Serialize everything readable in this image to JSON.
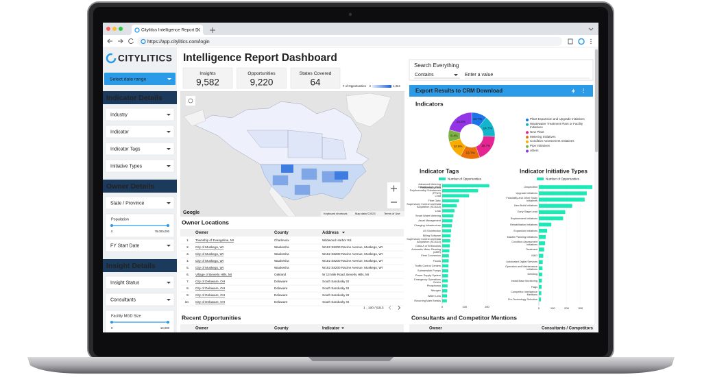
{
  "browser": {
    "tab_title": "Citylitics Intelligence Report D",
    "url": "https://app.citylitics.com/login"
  },
  "sidebar": {
    "logo": "CITYLITICS",
    "date_range": "Select date range",
    "sections": [
      {
        "title": "Indicator Details",
        "items": [
          {
            "label": "Industry"
          },
          {
            "label": "Indicator"
          },
          {
            "label": "Indicator Tags"
          },
          {
            "label": "Initiative Types"
          }
        ]
      },
      {
        "title": "Owner Details",
        "items": [
          {
            "label": "State / Province"
          },
          {
            "label": "Population",
            "min": "0",
            "max": "79,000,000"
          },
          {
            "label": "FY Start Date"
          }
        ]
      },
      {
        "title": "Insight Details",
        "items": [
          {
            "label": "Insight Status"
          },
          {
            "label": "Consultants"
          },
          {
            "label": "Facility MGD Size",
            "min": "0",
            "max": "13,000"
          }
        ]
      }
    ]
  },
  "header": {
    "title": "Intelligence Report Dashboard"
  },
  "stats": [
    {
      "label": "Insights",
      "value": "9,582"
    },
    {
      "label": "Opportunities",
      "value": "9,220"
    },
    {
      "label": "States Covered",
      "value": "64"
    }
  ],
  "map": {
    "legend_title": "# of Opportunities",
    "legend_min": "2",
    "legend_max": "1,324",
    "brand": "Google",
    "shortcuts": "Keyboard shortcuts",
    "map_data": "Map data ©2023",
    "terms": "Terms of Use"
  },
  "owner_locations": {
    "title": "Owner Locations",
    "columns": [
      "Owner",
      "County",
      "Address"
    ],
    "rows": [
      [
        "1.",
        "Township of Evangeline, MI",
        "Charlevoix",
        "Wildwood Harbor Rd"
      ],
      [
        "2.",
        "City of Muskego, WI",
        "Waukesha",
        "W182 S8200 Racine Avenue, Muskego, WI"
      ],
      [
        "3.",
        "City of Muskego, WI",
        "Waukesha",
        "W182 S8200 Racine Avenue, Muskego, WI"
      ],
      [
        "4.",
        "City of Muskego, WI",
        "Waukesha",
        "W182 S8200 Racine Avenue, Muskego, WI"
      ],
      [
        "5.",
        "City of Muskego, WI",
        "Waukesha",
        "W182 S8200 Racine Avenue, Muskego, WI"
      ],
      [
        "6.",
        "Village of Beverly Hills, MI",
        "Oakland",
        "W 13 Mile Road, Beverly Hills, MI"
      ],
      [
        "7.",
        "City of Delaware, OH",
        "Delaware",
        "South Sandusky St"
      ],
      [
        "8.",
        "City of Delaware, OH",
        "Delaware",
        "South Sandusky St"
      ],
      [
        "9.",
        "City of Delaware, OH",
        "Delaware",
        "South Sandusky St"
      ],
      [
        "10.",
        "City of Delaware, OH",
        "Delaware",
        "South Sandusky St"
      ]
    ],
    "pagination": "1 - 100 / 9213"
  },
  "recent_opportunities": {
    "title": "Recent Opportunities",
    "columns": [
      "Owner",
      "County",
      "Indicator"
    ]
  },
  "search": {
    "title": "Search Everything",
    "mode": "Contains",
    "placeholder": "Enter a value"
  },
  "export": {
    "label": "Export Results to CRM Download"
  },
  "indicators": {
    "type": "pie",
    "title": "Indicators",
    "categories": [
      "Plant Expansion and Upgrade Initiatives",
      "Wastewater Treatment Plant or Facility Initiatives",
      "New Plant",
      "Metering Initiatives",
      "Condition Assessment Initiatives",
      "Pipe Initiatives",
      "others"
    ],
    "values": [
      10.7,
      14.7,
      18.7,
      13.7,
      12.6,
      8.4,
      20.8
    ],
    "value_labels": [
      "10.7%",
      "14.7%",
      "18.7%",
      "13.7%",
      "12.6%",
      "8.4%",
      "20.8%"
    ],
    "colors": [
      "#1a73e8",
      "#12b5cb",
      "#e52592",
      "#e8710a",
      "#f9ab00",
      "#7cb342",
      "#9334e6"
    ]
  },
  "indicator_tags": {
    "type": "bar",
    "title": "Indicator Tags",
    "legend": "Number of Opportunities",
    "color": "#1de9b6",
    "categories": [
      "Advanced Metering Infrastructure (AMI)",
      "Perfluoroalkyl and Polyfluoroalkyl Substances (PFAS)",
      "Lead",
      "Fiber Optic",
      "Supervisory Control and Data Acquisition (SCADA)",
      "Leak",
      "Smart Water Metering",
      "Asset Management",
      "Charging Infrastructure",
      "UV Disinfection",
      "Billing Software",
      "Supervisory Control and Data Acquisition (SCADA)",
      "Class A or B Biosolids",
      "Automatic Meter Reading (AMR)",
      "Fleet Conversion",
      "Floods",
      "Traffic Control Centers",
      "Submersible Pumps",
      "Power Supply System",
      "Emergency Operations Center",
      "Phosphorus",
      "Nitrogen",
      "Water Loss",
      "Recurring Main Breaks"
    ],
    "values": [
      210,
      160,
      120,
      75,
      65,
      55,
      50,
      46,
      43,
      40,
      38,
      36,
      34,
      32,
      30,
      29,
      28,
      27,
      26,
      25,
      24,
      23,
      22,
      21
    ],
    "xlim": [
      0,
      220
    ],
    "xticks": [
      0,
      100,
      200
    ]
  },
  "initiative_types": {
    "type": "bar",
    "title": "Indicator Initiative Types",
    "legend": "Number of Opportunities",
    "color": "#1de9b6",
    "categories": [
      "Unspecified",
      "Upgrade Initiatives",
      "Feasibility and Other Study Initiatives",
      "New Build Initiatives",
      "Early Stage Lead",
      "Replacement Initiatives",
      "Rehabilitation Initiatives",
      "Expansion Initiatives",
      "Master Planning Initiatives",
      "Condition Assessment Initiatives",
      "Treatment",
      "M&O",
      "Automated Digital Services",
      "Operation and Maintenance Initiatives",
      "Delisting",
      "Install Base Monitoring",
      "Flags",
      "Competitor Intelligence Mentions",
      "Pre-Technology Selection"
    ],
    "values": [
      385,
      345,
      330,
      240,
      190,
      175,
      90,
      60,
      50,
      45,
      38,
      32,
      28,
      26,
      24,
      22,
      20,
      18,
      15
    ],
    "xlim": [
      0,
      400
    ],
    "xticks": [
      0,
      100,
      200,
      300
    ]
  },
  "consultants": {
    "title": "Consultants and Competitor Mentions",
    "columns": [
      "Owner",
      "Consultants / Competitors"
    ]
  }
}
